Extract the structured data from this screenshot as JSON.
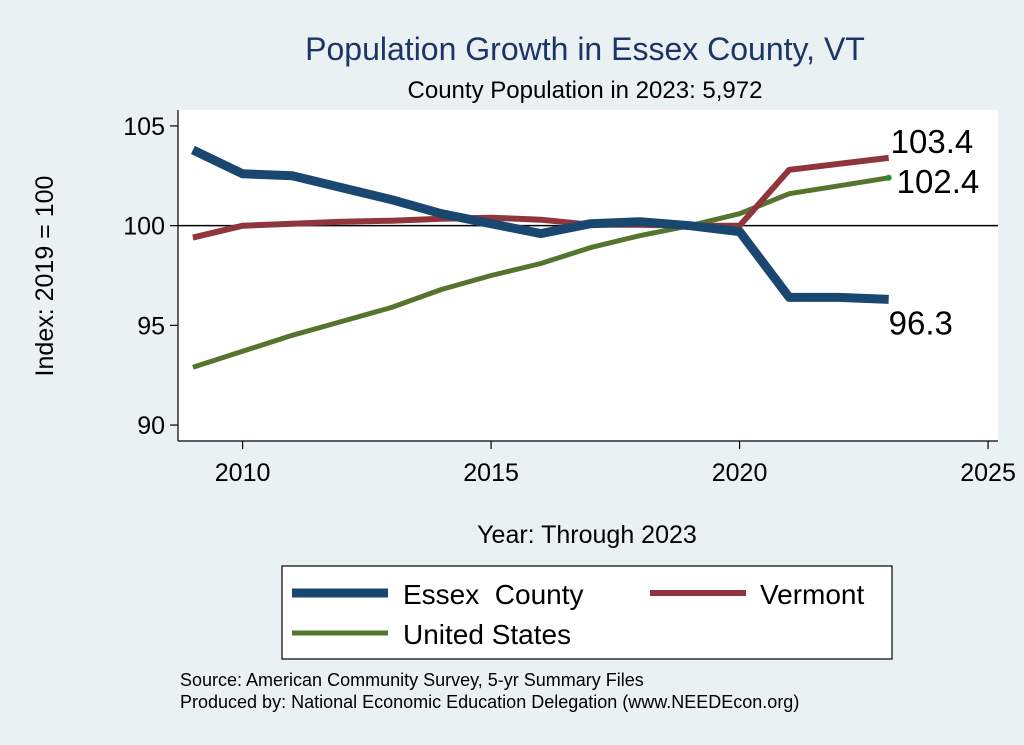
{
  "chart_data": {
    "type": "line",
    "title": "Population Growth in Essex County, VT",
    "subtitle": "County Population in 2023: 5,972",
    "xlabel": "Year: Through 2023",
    "ylabel": "Index: 2019 = 100",
    "xlim": [
      2008.7,
      2025.2
    ],
    "ylim": [
      89.2,
      105.8
    ],
    "xticks": [
      2010,
      2015,
      2020,
      2025
    ],
    "yticks": [
      90,
      95,
      100,
      105
    ],
    "reference_line": 100,
    "grid": false,
    "legend_position": "bottom",
    "x": [
      2009,
      2010,
      2011,
      2012,
      2013,
      2014,
      2015,
      2016,
      2017,
      2018,
      2019,
      2020,
      2021,
      2022,
      2023
    ],
    "series": [
      {
        "name": "Essex  County",
        "color": "#1a476f",
        "values": [
          103.8,
          102.6,
          102.5,
          101.9,
          101.3,
          100.6,
          100.1,
          99.6,
          100.1,
          100.2,
          100.0,
          99.7,
          96.4,
          96.4,
          96.3
        ],
        "end_label": "96.3"
      },
      {
        "name": "Vermont",
        "color": "#90353b",
        "values": [
          99.4,
          100.0,
          100.1,
          100.2,
          100.25,
          100.35,
          100.4,
          100.3,
          100.05,
          100.05,
          100.0,
          100.0,
          102.8,
          103.1,
          103.4
        ],
        "end_label": "103.4"
      },
      {
        "name": "United States",
        "color": "#55752f",
        "values": [
          92.9,
          93.7,
          94.5,
          95.2,
          95.9,
          96.8,
          97.5,
          98.1,
          98.9,
          99.5,
          100.0,
          100.6,
          101.6,
          102.0,
          102.4
        ],
        "end_label": "102.4"
      }
    ]
  },
  "notes": {
    "source": "Source: American Community Survey, 5-yr Summary Files",
    "produced_by": "Produced by: National Economic Education Delegation (www.NEEDEcon.org)"
  }
}
